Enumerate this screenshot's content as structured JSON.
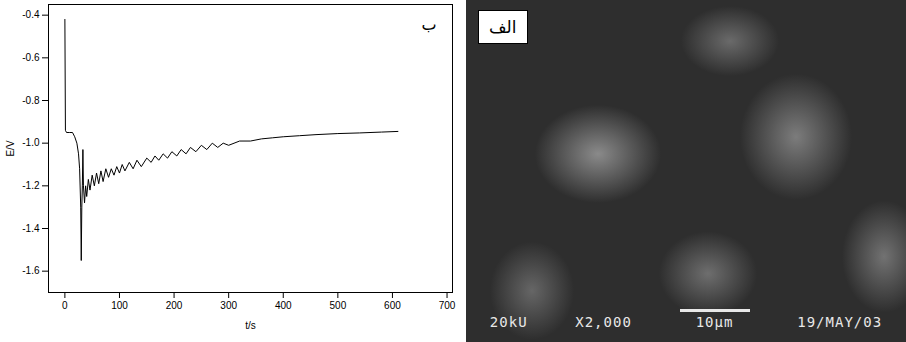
{
  "chart_data": {
    "type": "line",
    "x_label": "t/s",
    "y_label": "E/V",
    "annotations": [
      {
        "text": "ب"
      }
    ],
    "color": "#000000",
    "x": [
      0,
      1,
      3,
      8,
      14,
      18,
      22,
      25,
      27,
      29,
      30,
      31,
      32,
      33,
      34,
      36,
      38,
      40,
      43,
      46,
      50,
      54,
      58,
      62,
      66,
      70,
      75,
      80,
      85,
      90,
      95,
      100,
      105,
      110,
      118,
      125,
      132,
      140,
      150,
      158,
      165,
      172,
      180,
      188,
      196,
      205,
      213,
      222,
      230,
      240,
      250,
      260,
      270,
      280,
      290,
      300,
      320,
      340,
      360,
      380,
      400,
      430,
      460,
      500,
      540,
      580,
      610
    ],
    "values": [
      -0.42,
      -0.94,
      -0.95,
      -0.95,
      -0.95,
      -0.97,
      -1.0,
      -1.05,
      -1.12,
      -1.3,
      -1.55,
      -1.3,
      -1.2,
      -1.03,
      -1.2,
      -1.28,
      -1.2,
      -1.25,
      -1.17,
      -1.22,
      -1.15,
      -1.2,
      -1.14,
      -1.19,
      -1.13,
      -1.18,
      -1.12,
      -1.16,
      -1.12,
      -1.15,
      -1.11,
      -1.14,
      -1.1,
      -1.13,
      -1.09,
      -1.12,
      -1.08,
      -1.11,
      -1.07,
      -1.09,
      -1.06,
      -1.08,
      -1.05,
      -1.07,
      -1.04,
      -1.06,
      -1.03,
      -1.05,
      -1.02,
      -1.04,
      -1.01,
      -1.03,
      -1.0,
      -1.02,
      -1.0,
      -1.01,
      -0.99,
      -0.99,
      -0.98,
      -0.975,
      -0.97,
      -0.965,
      -0.96,
      -0.955,
      -0.952,
      -0.948,
      -0.945
    ],
    "xlim": [
      -30,
      710
    ],
    "xticks": [
      0,
      100,
      200,
      300,
      400,
      500,
      600,
      700
    ],
    "ylim": [
      -1.7,
      -0.35
    ],
    "yticks": [
      -1.6,
      -1.4,
      -1.2,
      {
        "value": -1,
        "label": "-1.0"
      },
      -0.8,
      -0.6,
      -0.4
    ],
    "grid": false
  },
  "image": {
    "label": "الف",
    "caption": [
      "20kU",
      "X2,000",
      "10µm",
      "19/MAY/03"
    ]
  }
}
